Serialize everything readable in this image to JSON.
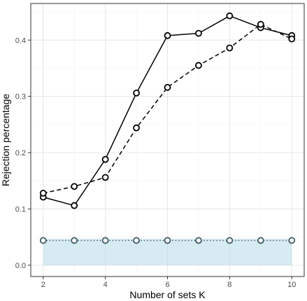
{
  "chart_data": {
    "type": "line",
    "title": "",
    "xlabel": "Number of sets K",
    "ylabel": "Rejection percentage",
    "x": [
      2,
      3,
      4,
      5,
      6,
      7,
      8,
      9,
      10
    ],
    "xlim": [
      1.6,
      10.4
    ],
    "ylim": [
      -0.02,
      0.465
    ],
    "xticks": [
      2,
      4,
      6,
      8,
      10
    ],
    "yticks": [
      0.0,
      0.1,
      0.2,
      0.3,
      0.4
    ],
    "ytick_labels": [
      "0.0",
      "0.1",
      "0.2",
      "0.3",
      "0.4"
    ],
    "grid": true,
    "legend": "none",
    "band": {
      "y_from": 0.0,
      "y_to": 0.047,
      "color": "#add8e6"
    },
    "series": [
      {
        "values": [
          0.121,
          0.106,
          0.188,
          0.306,
          0.408,
          0.412,
          0.443,
          0.422,
          0.408
        ],
        "line_style": "solid",
        "color": "#000000"
      },
      {
        "values": [
          0.128,
          0.14,
          0.156,
          0.244,
          0.316,
          0.355,
          0.386,
          0.428,
          0.402
        ],
        "line_style": "dashed",
        "color": "#000000"
      },
      {
        "values": [
          0.044,
          0.044,
          0.044,
          0.044,
          0.044,
          0.044,
          0.044,
          0.044,
          0.044
        ],
        "line_style": "dotted",
        "color": "#3f5a66"
      }
    ]
  }
}
